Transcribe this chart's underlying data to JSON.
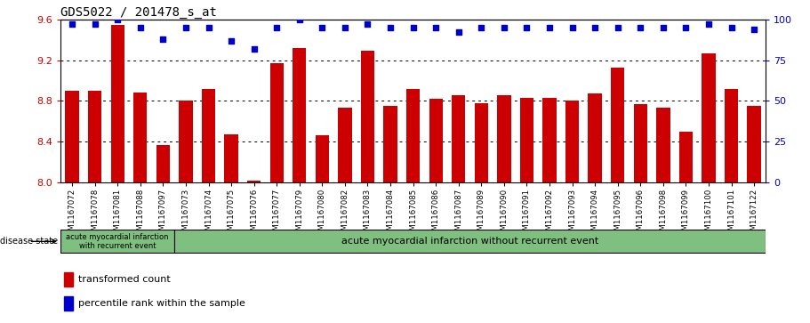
{
  "title": "GDS5022 / 201478_s_at",
  "samples": [
    "GSM1167072",
    "GSM1167078",
    "GSM1167081",
    "GSM1167088",
    "GSM1167097",
    "GSM1167073",
    "GSM1167074",
    "GSM1167075",
    "GSM1167076",
    "GSM1167077",
    "GSM1167079",
    "GSM1167080",
    "GSM1167082",
    "GSM1167083",
    "GSM1167084",
    "GSM1167085",
    "GSM1167086",
    "GSM1167087",
    "GSM1167089",
    "GSM1167090",
    "GSM1167091",
    "GSM1167092",
    "GSM1167093",
    "GSM1167094",
    "GSM1167095",
    "GSM1167096",
    "GSM1167098",
    "GSM1167099",
    "GSM1167100",
    "GSM1167101",
    "GSM1167122"
  ],
  "bar_values": [
    8.9,
    8.9,
    9.55,
    8.88,
    8.37,
    8.8,
    8.92,
    8.47,
    8.02,
    9.17,
    9.32,
    8.46,
    8.73,
    9.29,
    8.75,
    8.92,
    8.82,
    8.86,
    8.78,
    8.86,
    8.83,
    8.83,
    8.8,
    8.87,
    9.13,
    8.77,
    8.73,
    8.5,
    9.27,
    8.92,
    8.75
  ],
  "percentile_values": [
    97,
    97,
    100,
    95,
    88,
    95,
    95,
    87,
    82,
    95,
    100,
    95,
    95,
    97,
    95,
    95,
    95,
    92,
    95,
    95,
    95,
    95,
    95,
    95,
    95,
    95,
    95,
    95,
    97,
    95,
    94
  ],
  "bar_color": "#cc0000",
  "dot_color": "#0000cc",
  "ylim_left": [
    8.0,
    9.6
  ],
  "ylim_right": [
    0,
    100
  ],
  "yticks_left": [
    8.0,
    8.4,
    8.8,
    9.2,
    9.6
  ],
  "yticks_right": [
    0,
    25,
    50,
    75,
    100
  ],
  "grid_values": [
    8.4,
    8.8,
    9.2
  ],
  "group1_count": 5,
  "group1_label": "acute myocardial infarction\nwith recurrent event",
  "group2_label": "acute myocardial infarction without recurrent event",
  "group_color": "#7FBF7F",
  "disease_state_label": "disease state",
  "legend_red": "transformed count",
  "legend_blue": "percentile rank within the sample",
  "title_fontsize": 10,
  "axis_color_left": "#cc0000",
  "axis_color_right": "#0000cc"
}
